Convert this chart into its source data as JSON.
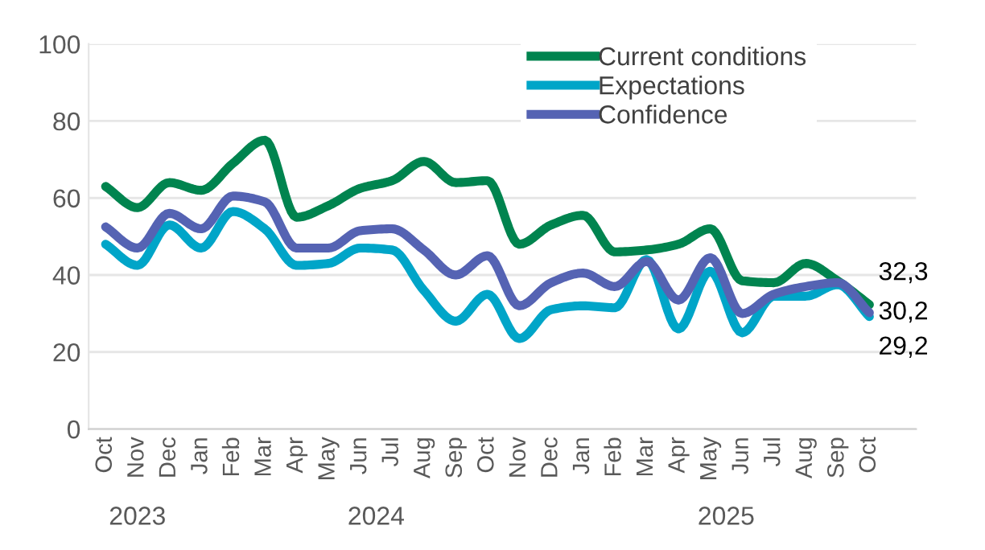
{
  "chart_data": {
    "type": "line",
    "x": [
      "2023-10",
      "2023-11",
      "2023-12",
      "2024-01",
      "2024-02",
      "2024-03",
      "2024-04",
      "2024-05",
      "2024-06",
      "2024-07",
      "2024-08",
      "2024-09",
      "2024-10",
      "2024-11",
      "2024-12",
      "2025-01",
      "2025-02",
      "2025-03",
      "2025-04",
      "2025-05",
      "2025-06",
      "2025-07",
      "2025-08",
      "2025-09",
      "2025-10"
    ],
    "xlim": [
      "2023-09-15",
      "2025-11-15"
    ],
    "xticks": [
      {
        "value": "2023-10",
        "label": "Oct"
      },
      {
        "value": "2023-11",
        "label": "Nov"
      },
      {
        "value": "2023-12",
        "label": "Dec"
      },
      {
        "value": "2024-01",
        "label": "Jan"
      },
      {
        "value": "2024-02",
        "label": "Feb"
      },
      {
        "value": "2024-03",
        "label": "Mar"
      },
      {
        "value": "2024-04",
        "label": "Apr"
      },
      {
        "value": "2024-05",
        "label": "May"
      },
      {
        "value": "2024-06",
        "label": "Jun"
      },
      {
        "value": "2024-07",
        "label": "Jul"
      },
      {
        "value": "2024-08",
        "label": "Aug"
      },
      {
        "value": "2024-09",
        "label": "Sep"
      },
      {
        "value": "2024-10",
        "label": "Oct"
      },
      {
        "value": "2024-11",
        "label": "Nov"
      },
      {
        "value": "2024-12",
        "label": "Dec"
      },
      {
        "value": "2025-01",
        "label": "Jan"
      },
      {
        "value": "2025-02",
        "label": "Feb"
      },
      {
        "value": "2025-03",
        "label": "Mar"
      },
      {
        "value": "2025-04",
        "label": "Apr"
      },
      {
        "value": "2025-05",
        "label": "May"
      },
      {
        "value": "2025-06",
        "label": "Jun"
      },
      {
        "value": "2025-07",
        "label": "Jul"
      },
      {
        "value": "2025-08",
        "label": "Aug"
      },
      {
        "value": "2025-09",
        "label": "Sep"
      },
      {
        "value": "2025-10",
        "label": "Oct"
      }
    ],
    "ylim": [
      0,
      100
    ],
    "yticks": [
      0,
      20,
      40,
      60,
      80,
      100
    ],
    "grid": "y",
    "legend": "top right",
    "marker": "none",
    "line_style": "solid",
    "annotations": [
      "2023",
      "2024",
      "2025"
    ],
    "series": [
      {
        "name": "Current conditions",
        "color": "#00844f",
        "values": [
          63,
          57.5,
          64,
          62,
          69,
          75,
          55,
          58,
          62.5,
          64.5,
          69.5,
          64,
          64.5,
          48,
          53,
          55.5,
          46,
          46.5,
          48,
          52,
          38.5,
          38,
          43,
          38.5,
          32.3
        ],
        "value_labels": [
          null,
          null,
          null,
          null,
          null,
          null,
          null,
          null,
          null,
          null,
          null,
          null,
          null,
          null,
          null,
          null,
          null,
          null,
          null,
          null,
          null,
          null,
          null,
          null,
          "32,3"
        ]
      },
      {
        "name": "Expectations",
        "color": "#00a5c8",
        "values": [
          48,
          42.5,
          53,
          47,
          56.5,
          52,
          42.5,
          43,
          47,
          46.5,
          36,
          28,
          35,
          23.5,
          31,
          32,
          31.5,
          44,
          26,
          41,
          25,
          34.5,
          34.5,
          37.5,
          29.2
        ],
        "value_labels": [
          null,
          null,
          null,
          null,
          null,
          null,
          null,
          null,
          null,
          null,
          null,
          null,
          null,
          null,
          null,
          null,
          null,
          null,
          null,
          null,
          null,
          null,
          null,
          null,
          "29,2"
        ]
      },
      {
        "name": "Confidence",
        "color": "#5563b3",
        "values": [
          52.5,
          47,
          56,
          52,
          60.5,
          59,
          47,
          47,
          51.5,
          52,
          46.5,
          40,
          45,
          32,
          38,
          40.5,
          37,
          43.5,
          33.5,
          44.5,
          30,
          35,
          37,
          38,
          30.2
        ],
        "value_labels": [
          null,
          null,
          null,
          null,
          null,
          null,
          null,
          null,
          null,
          null,
          null,
          null,
          null,
          null,
          null,
          null,
          null,
          null,
          null,
          null,
          null,
          null,
          null,
          null,
          "30,2"
        ]
      }
    ]
  }
}
